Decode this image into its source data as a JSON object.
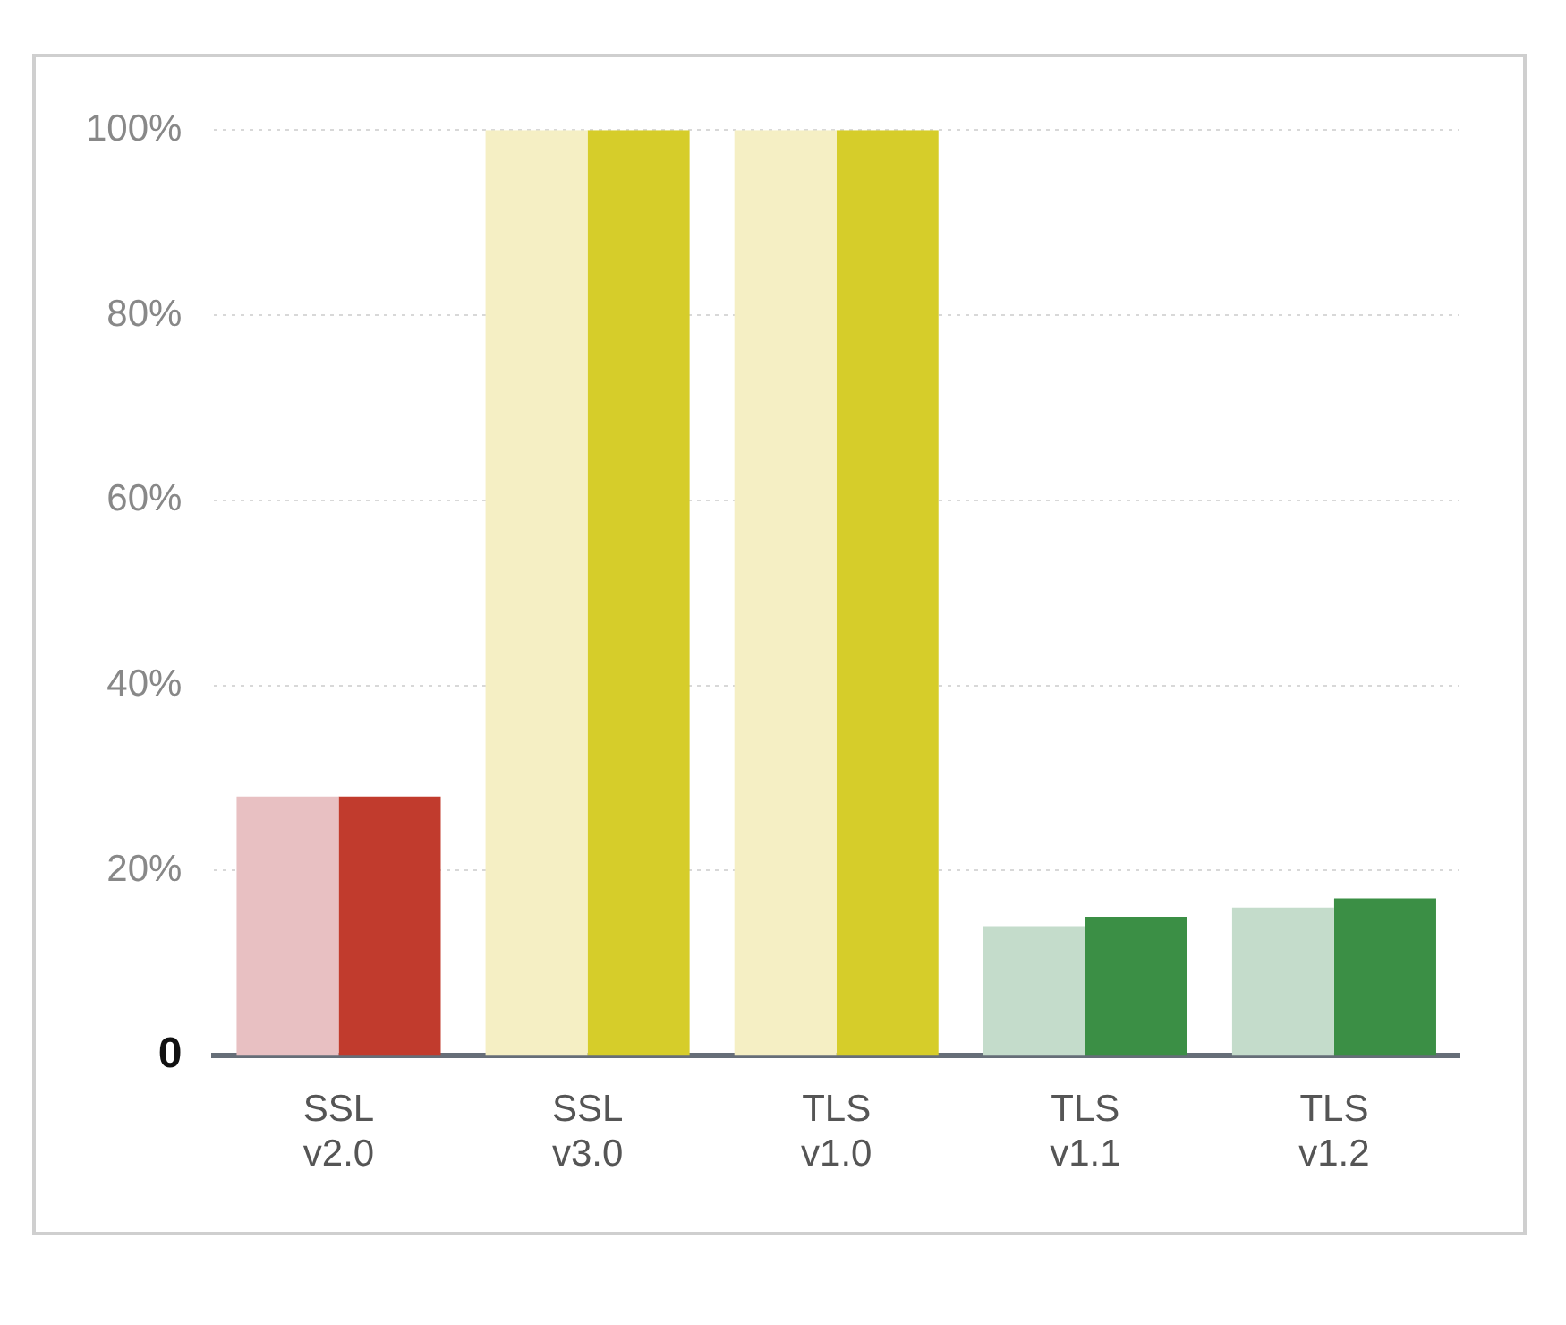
{
  "chart_data": {
    "type": "bar",
    "categories": [
      "SSL\nv2.0",
      "SSL\nv3.0",
      "TLS\nv1.0",
      "TLS\nv1.1",
      "TLS\nv1.2"
    ],
    "series": [
      {
        "colors": [
          "#e8c0c2",
          "#f5efc4",
          "#f5efc4",
          "#c4dccb",
          "#c4dccb"
        ],
        "values": [
          28,
          100,
          100,
          14,
          16
        ]
      },
      {
        "colors": [
          "#c13b2d",
          "#d6cd2a",
          "#d6cd2a",
          "#3b8f45",
          "#3b8f45"
        ],
        "values": [
          28,
          100,
          100,
          15,
          17
        ]
      }
    ],
    "ylim": [
      0,
      100
    ],
    "yticks": [
      0,
      {
        "value": 20,
        "label": "20%"
      },
      {
        "value": 40,
        "label": "40%"
      },
      {
        "value": 60,
        "label": "60%"
      },
      {
        "value": 80,
        "label": "80%"
      },
      {
        "value": 100,
        "label": "100%"
      }
    ],
    "grid": "y",
    "legend": false
  }
}
